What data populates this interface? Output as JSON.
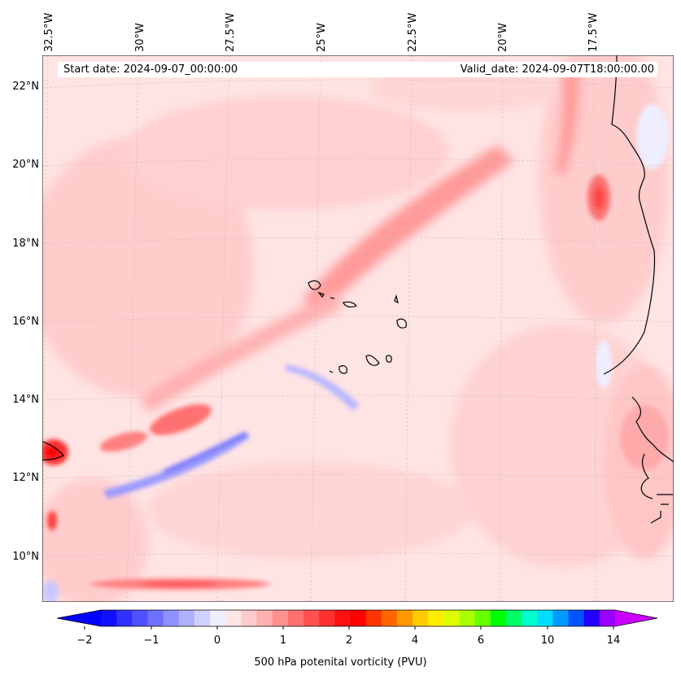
{
  "map": {
    "lon_labels": [
      "32.5°W",
      "30°W",
      "27.5°W",
      "25°W",
      "22.5°W",
      "20°W",
      "17.5°W"
    ],
    "lat_labels": [
      "22°N",
      "20°N",
      "18°N",
      "16°N",
      "14°N",
      "12°N",
      "10°N"
    ],
    "start_date": "Start date: 2024-09-07_00:00:00",
    "valid_date": "Valid_date: 2024-09-07T18:00:00.00"
  },
  "colorbar": {
    "title": "500 hPa potenital vorticity (PVU)",
    "tick_labels": [
      "−2",
      "−1",
      "0",
      "1",
      "2",
      "4",
      "6",
      "10",
      "14"
    ],
    "colors": [
      "#1010ff",
      "#3030ff",
      "#5050ff",
      "#7070ff",
      "#9090ff",
      "#b0b0ff",
      "#d0d0ff",
      "#eeeeff",
      "#ffe6e6",
      "#ffcccc",
      "#ffb0b0",
      "#ff9090",
      "#ff7070",
      "#ff5050",
      "#ff3030",
      "#ff1010",
      "#ff0000",
      "#ff3300",
      "#ff6600",
      "#ff9900",
      "#ffcc00",
      "#ffee00",
      "#ddff00",
      "#aaff00",
      "#66ff00",
      "#00ff00",
      "#00ff66",
      "#00ffcc",
      "#00ddff",
      "#0099ff",
      "#0055ff",
      "#2200ff",
      "#9900ff"
    ],
    "extend_min_color": "#0000ff",
    "extend_max_color": "#cc00ff"
  }
}
